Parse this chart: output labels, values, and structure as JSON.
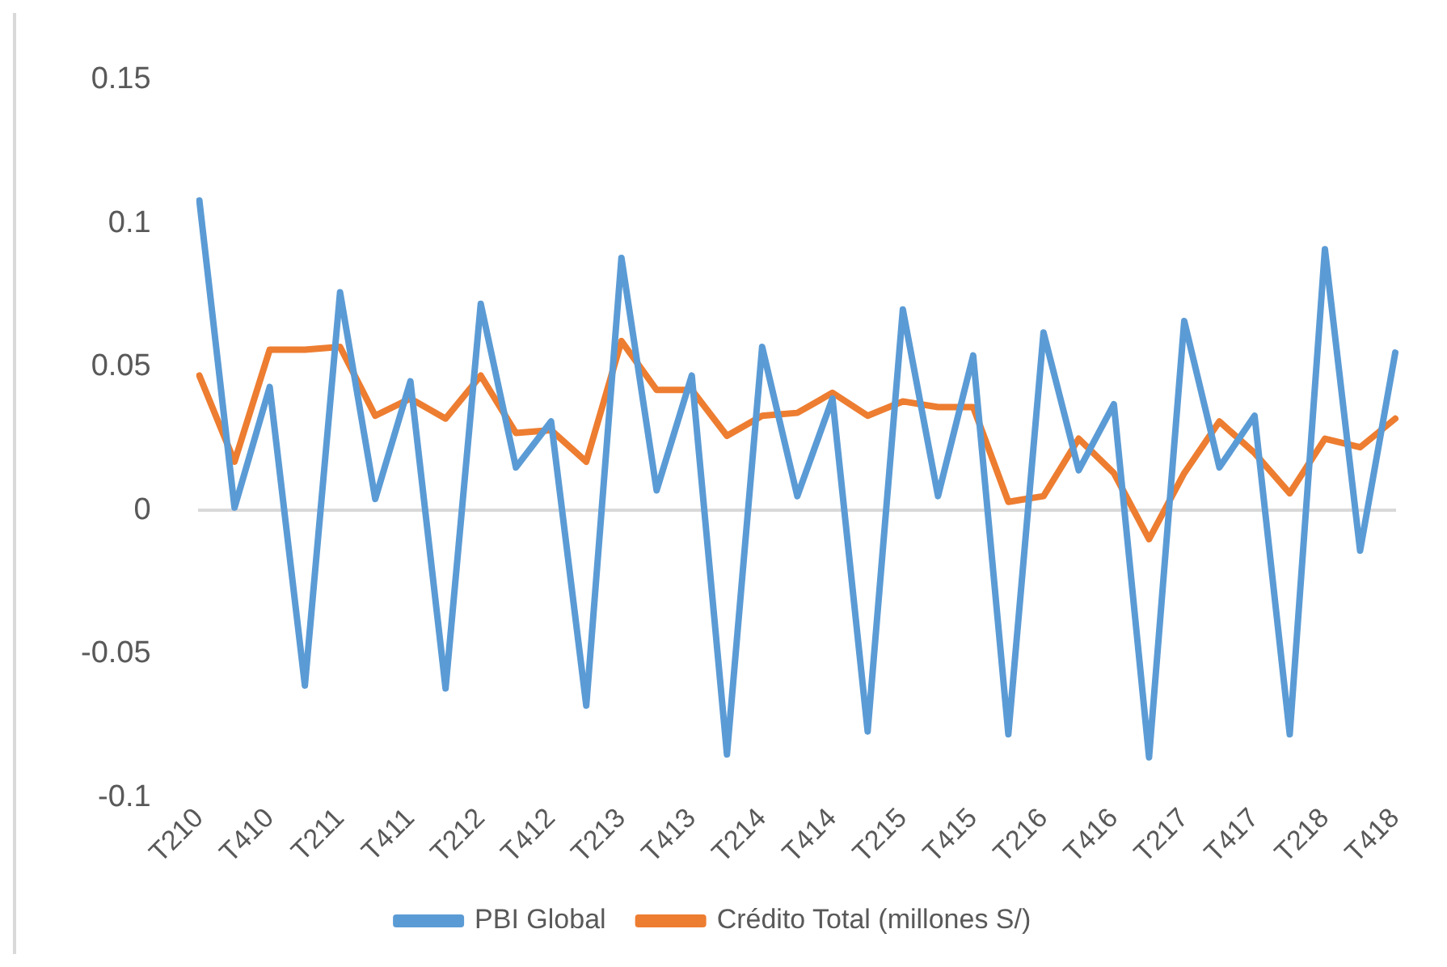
{
  "chart_data": {
    "type": "line",
    "categories": [
      "T210",
      null,
      "T410",
      null,
      "T211",
      null,
      "T411",
      null,
      "T212",
      null,
      "T412",
      null,
      "T213",
      null,
      "T413",
      null,
      "T214",
      null,
      "T414",
      null,
      "T215",
      null,
      "T415",
      null,
      "T216",
      null,
      "T416",
      null,
      "T217",
      null,
      "T417",
      null,
      "T218",
      null,
      "T418"
    ],
    "series": [
      {
        "name": "PBI Global",
        "color": "#5b9bd5",
        "values": [
          0.108,
          0.001,
          0.043,
          -0.061,
          0.076,
          0.004,
          0.045,
          -0.062,
          0.072,
          0.015,
          0.031,
          -0.068,
          0.088,
          0.007,
          0.047,
          -0.085,
          0.057,
          0.005,
          0.039,
          -0.077,
          0.07,
          0.005,
          0.054,
          -0.078,
          0.062,
          0.014,
          0.037,
          -0.086,
          0.066,
          0.015,
          0.033,
          -0.078,
          0.091,
          -0.014,
          0.055
        ]
      },
      {
        "name": "Crédito Total (millones S/)",
        "color": "#ed7d31",
        "values": [
          0.047,
          0.017,
          0.056,
          0.056,
          0.057,
          0.033,
          0.039,
          0.032,
          0.047,
          0.027,
          0.028,
          0.017,
          0.059,
          0.042,
          0.042,
          0.026,
          0.033,
          0.034,
          0.041,
          0.033,
          0.038,
          0.036,
          0.036,
          0.003,
          0.005,
          0.025,
          0.013,
          -0.01,
          0.013,
          0.031,
          0.02,
          0.006,
          0.025,
          0.022,
          0.032
        ]
      }
    ],
    "ylim": [
      -0.1,
      0.15
    ],
    "yticks": [
      -0.1,
      -0.05,
      0,
      0.05,
      0.1,
      0.15
    ],
    "legend": "bottom",
    "marker": "none",
    "line_style": "solid"
  }
}
